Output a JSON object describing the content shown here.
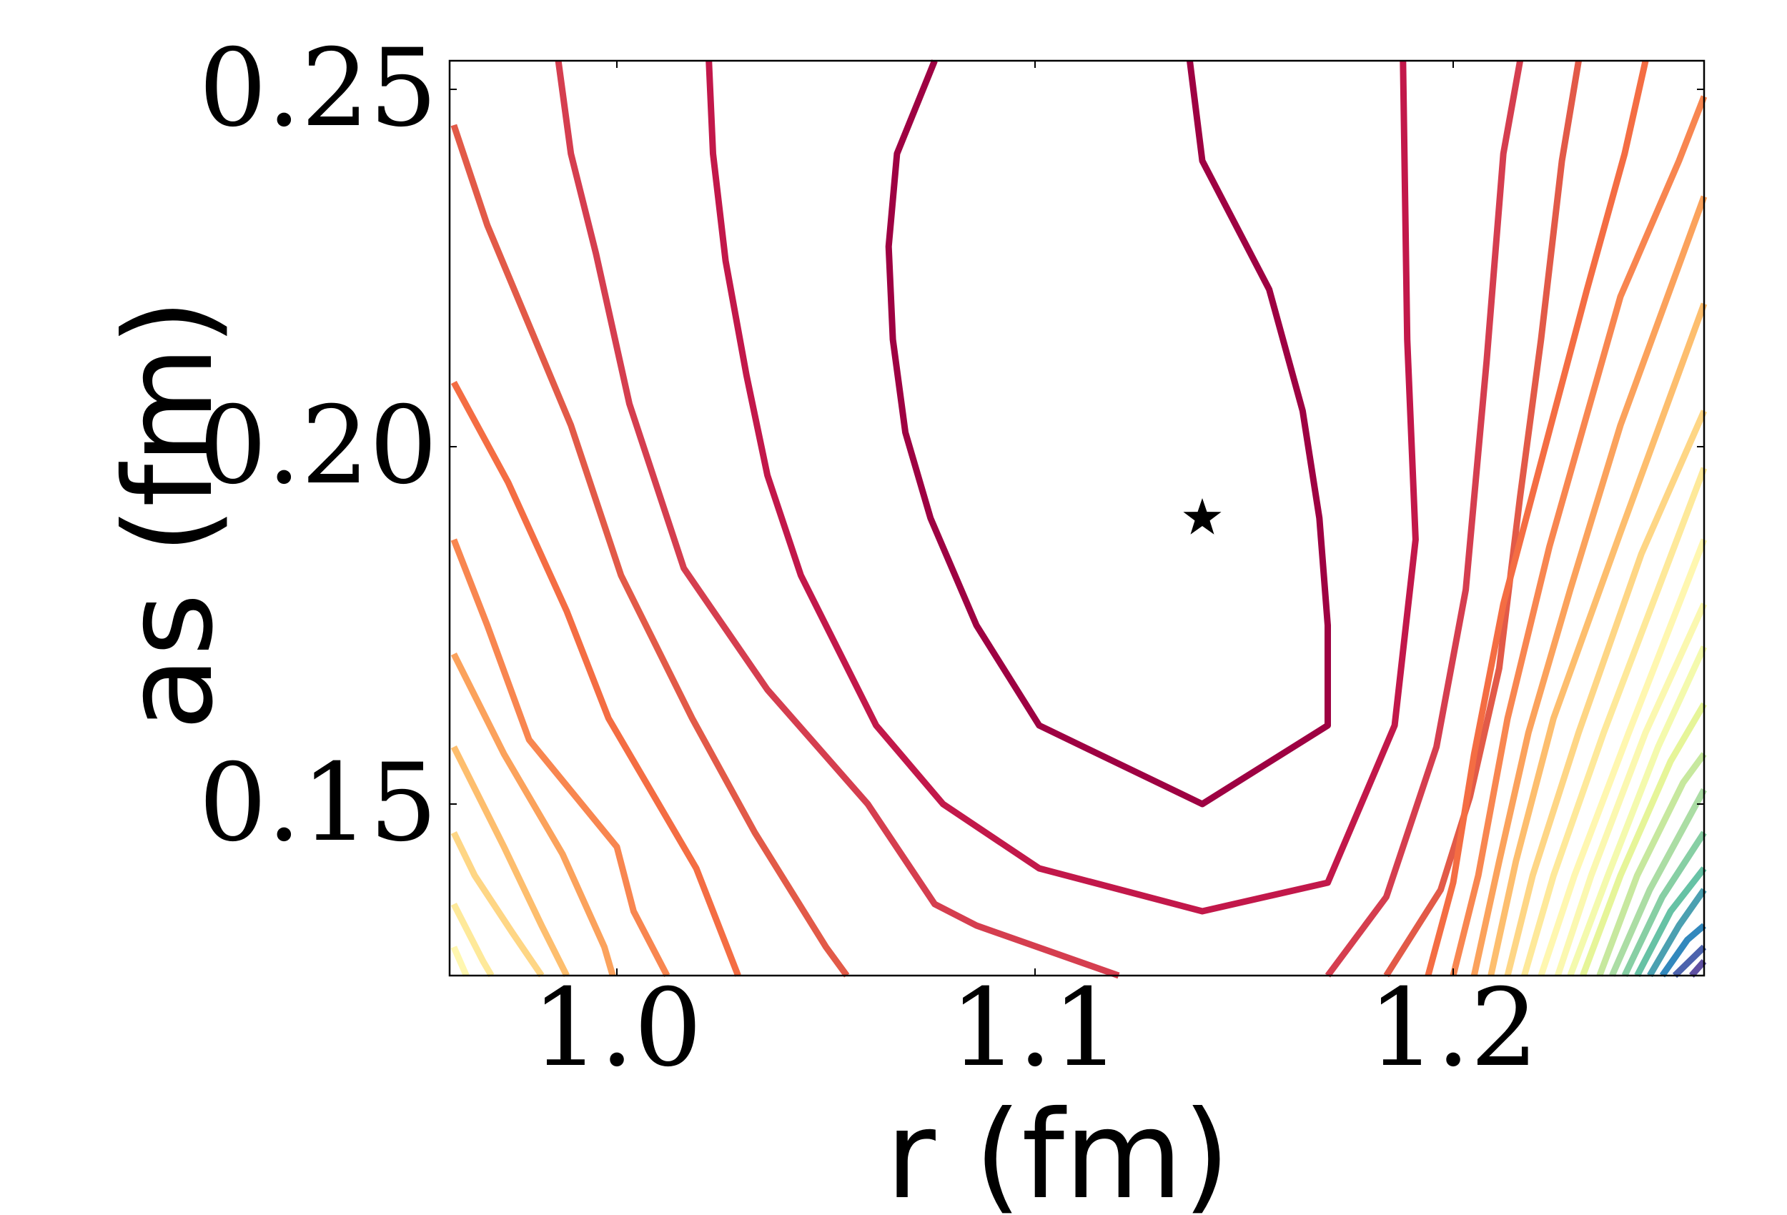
{
  "chart_data": {
    "type": "contour",
    "xlabel": "r (fm)",
    "ylabel": "as (fm)",
    "xlim": [
      0.96,
      1.26
    ],
    "ylim": [
      0.126,
      0.254
    ],
    "xticks": [
      {
        "value": 1.0,
        "label": "1.0"
      },
      {
        "value": 1.1,
        "label": "1.1"
      },
      {
        "value": 1.2,
        "label": "1.2"
      }
    ],
    "yticks": [
      {
        "value": 0.15,
        "label": "0.15"
      },
      {
        "value": 0.2,
        "label": "0.20"
      },
      {
        "value": 0.25,
        "label": "0.25"
      }
    ],
    "minimum": {
      "r": 1.14,
      "as": 0.19,
      "marker": "star"
    },
    "contour_levels": [
      {
        "level": 1,
        "color": "#9e0142",
        "points": [
          [
            1.076,
            0.254
          ],
          [
            1.067,
            0.241
          ],
          [
            1.065,
            0.228
          ],
          [
            1.066,
            0.215
          ],
          [
            1.069,
            0.202
          ],
          [
            1.075,
            0.19
          ],
          [
            1.086,
            0.175
          ],
          [
            1.101,
            0.161
          ],
          [
            1.14,
            0.15
          ],
          [
            1.17,
            0.161
          ],
          [
            1.17,
            0.175
          ],
          [
            1.168,
            0.19
          ],
          [
            1.164,
            0.205
          ],
          [
            1.156,
            0.222
          ],
          [
            1.14,
            0.24
          ],
          [
            1.137,
            0.254
          ]
        ]
      },
      {
        "level": 2,
        "color": "#c2184a",
        "points": [
          [
            1.022,
            0.254
          ],
          [
            1.023,
            0.241
          ],
          [
            1.026,
            0.226
          ],
          [
            1.031,
            0.21
          ],
          [
            1.036,
            0.196
          ],
          [
            1.044,
            0.182
          ],
          [
            1.062,
            0.161
          ],
          [
            1.078,
            0.15
          ],
          [
            1.101,
            0.141
          ],
          [
            1.14,
            0.135
          ],
          [
            1.17,
            0.139
          ],
          [
            1.186,
            0.161
          ],
          [
            1.191,
            0.187
          ],
          [
            1.189,
            0.215
          ],
          [
            1.188,
            0.254
          ]
        ]
      },
      {
        "level": 3,
        "color": "#d53e4f",
        "points": [
          [
            0.986,
            0.254
          ],
          [
            0.989,
            0.241
          ],
          [
            0.995,
            0.227
          ],
          [
            1.003,
            0.206
          ],
          [
            1.016,
            0.183
          ],
          [
            1.036,
            0.166
          ],
          [
            1.06,
            0.15
          ],
          [
            1.076,
            0.136
          ],
          [
            1.086,
            0.133
          ],
          [
            1.12,
            0.126
          ]
        ]
      },
      {
        "level": 4,
        "color": "#d53e4f",
        "points": [
          [
            1.17,
            0.126
          ],
          [
            1.184,
            0.137
          ],
          [
            1.196,
            0.158
          ],
          [
            1.203,
            0.18
          ],
          [
            1.208,
            0.212
          ],
          [
            1.212,
            0.241
          ],
          [
            1.216,
            0.254
          ]
        ]
      },
      {
        "level": 5,
        "color": "#e25a48",
        "points": [
          [
            0.961,
            0.245
          ],
          [
            0.969,
            0.231
          ],
          [
            0.989,
            0.203
          ],
          [
            1.001,
            0.182
          ],
          [
            1.018,
            0.162
          ],
          [
            1.033,
            0.146
          ],
          [
            1.05,
            0.13
          ],
          [
            1.055,
            0.126
          ]
        ]
      },
      {
        "level": 6,
        "color": "#e25a48",
        "points": [
          [
            1.184,
            0.126
          ],
          [
            1.197,
            0.138
          ],
          [
            1.204,
            0.151
          ],
          [
            1.211,
            0.169
          ],
          [
            1.216,
            0.193
          ],
          [
            1.221,
            0.215
          ],
          [
            1.226,
            0.24
          ],
          [
            1.23,
            0.254
          ]
        ]
      },
      {
        "level": 7,
        "color": "#f46d43",
        "points": [
          [
            0.961,
            0.209
          ],
          [
            0.974,
            0.195
          ],
          [
            0.988,
            0.177
          ],
          [
            0.998,
            0.162
          ],
          [
            1.019,
            0.141
          ],
          [
            1.029,
            0.126
          ]
        ]
      },
      {
        "level": 8,
        "color": "#f46d43",
        "points": [
          [
            1.194,
            0.126
          ],
          [
            1.2,
            0.139
          ],
          [
            1.205,
            0.157
          ],
          [
            1.212,
            0.178
          ],
          [
            1.222,
            0.2
          ],
          [
            1.232,
            0.222
          ],
          [
            1.241,
            0.241
          ],
          [
            1.246,
            0.254
          ]
        ]
      },
      {
        "level": 9,
        "color": "#f88650",
        "points": [
          [
            0.961,
            0.187
          ],
          [
            0.969,
            0.175
          ],
          [
            0.979,
            0.159
          ],
          [
            1.0,
            0.144
          ],
          [
            1.004,
            0.135
          ],
          [
            1.012,
            0.126
          ]
        ]
      },
      {
        "level": 10,
        "color": "#f88650",
        "points": [
          [
            1.2,
            0.126
          ],
          [
            1.206,
            0.14
          ],
          [
            1.213,
            0.162
          ],
          [
            1.223,
            0.186
          ],
          [
            1.24,
            0.221
          ],
          [
            1.254,
            0.24
          ],
          [
            1.26,
            0.249
          ]
        ]
      },
      {
        "level": 11,
        "color": "#fba25c",
        "points": [
          [
            0.961,
            0.171
          ],
          [
            0.973,
            0.157
          ],
          [
            0.987,
            0.143
          ],
          [
            0.997,
            0.13
          ],
          [
            0.999,
            0.126
          ]
        ]
      },
      {
        "level": 12,
        "color": "#fba25c",
        "points": [
          [
            1.205,
            0.126
          ],
          [
            1.211,
            0.142
          ],
          [
            1.218,
            0.16
          ],
          [
            1.228,
            0.18
          ],
          [
            1.24,
            0.203
          ],
          [
            1.26,
            0.235
          ]
        ]
      },
      {
        "level": 13,
        "color": "#fdbe6e",
        "points": [
          [
            0.961,
            0.158
          ],
          [
            0.973,
            0.144
          ],
          [
            0.982,
            0.133
          ],
          [
            0.988,
            0.126
          ]
        ]
      },
      {
        "level": 14,
        "color": "#fdbe6e",
        "points": [
          [
            1.209,
            0.126
          ],
          [
            1.215,
            0.142
          ],
          [
            1.224,
            0.162
          ],
          [
            1.24,
            0.188
          ],
          [
            1.26,
            0.22
          ]
        ]
      },
      {
        "level": 15,
        "color": "#fed685",
        "points": [
          [
            0.961,
            0.146
          ],
          [
            0.966,
            0.14
          ],
          [
            0.975,
            0.132
          ],
          [
            0.982,
            0.126
          ]
        ]
      },
      {
        "level": 16,
        "color": "#fed685",
        "points": [
          [
            1.213,
            0.126
          ],
          [
            1.219,
            0.14
          ],
          [
            1.23,
            0.16
          ],
          [
            1.245,
            0.185
          ],
          [
            1.26,
            0.205
          ]
        ]
      },
      {
        "level": 17,
        "color": "#fee99a",
        "points": [
          [
            0.961,
            0.136
          ],
          [
            0.968,
            0.128
          ],
          [
            0.97,
            0.126
          ]
        ]
      },
      {
        "level": 18,
        "color": "#fee99a",
        "points": [
          [
            1.217,
            0.126
          ],
          [
            1.224,
            0.14
          ],
          [
            1.236,
            0.16
          ],
          [
            1.26,
            0.197
          ]
        ]
      },
      {
        "level": 19,
        "color": "#fff7b0",
        "points": [
          [
            0.961,
            0.13
          ],
          [
            0.964,
            0.126
          ]
        ]
      },
      {
        "level": 20,
        "color": "#fff7b0",
        "points": [
          [
            1.221,
            0.126
          ],
          [
            1.229,
            0.14
          ],
          [
            1.242,
            0.16
          ],
          [
            1.26,
            0.187
          ]
        ]
      },
      {
        "level": 21,
        "color": "#fbf8b0",
        "points": [
          [
            1.225,
            0.126
          ],
          [
            1.233,
            0.14
          ],
          [
            1.246,
            0.16
          ],
          [
            1.26,
            0.178
          ]
        ]
      },
      {
        "level": 22,
        "color": "#f4faad",
        "points": [
          [
            1.228,
            0.126
          ],
          [
            1.237,
            0.14
          ],
          [
            1.249,
            0.158
          ],
          [
            1.26,
            0.172
          ]
        ]
      },
      {
        "level": 23,
        "color": "#e6f598",
        "points": [
          [
            1.231,
            0.126
          ],
          [
            1.24,
            0.14
          ],
          [
            1.252,
            0.156
          ],
          [
            1.26,
            0.164
          ]
        ]
      },
      {
        "level": 24,
        "color": "#c7e89e",
        "points": [
          [
            1.235,
            0.126
          ],
          [
            1.244,
            0.14
          ],
          [
            1.255,
            0.153
          ],
          [
            1.26,
            0.157
          ]
        ]
      },
      {
        "level": 25,
        "color": "#abdda4",
        "points": [
          [
            1.238,
            0.126
          ],
          [
            1.247,
            0.138
          ],
          [
            1.26,
            0.152
          ]
        ]
      },
      {
        "level": 26,
        "color": "#87cfa4",
        "points": [
          [
            1.241,
            0.126
          ],
          [
            1.25,
            0.137
          ],
          [
            1.26,
            0.146
          ]
        ]
      },
      {
        "level": 27,
        "color": "#66c2a5",
        "points": [
          [
            1.244,
            0.126
          ],
          [
            1.252,
            0.135
          ],
          [
            1.26,
            0.141
          ]
        ]
      },
      {
        "level": 28,
        "color": "#4ba0b1",
        "points": [
          [
            1.247,
            0.126
          ],
          [
            1.254,
            0.133
          ],
          [
            1.26,
            0.138
          ]
        ]
      },
      {
        "level": 29,
        "color": "#3288bd",
        "points": [
          [
            1.25,
            0.126
          ],
          [
            1.256,
            0.131
          ],
          [
            1.26,
            0.133
          ]
        ]
      },
      {
        "level": 30,
        "color": "#4c63ad",
        "points": [
          [
            1.253,
            0.126
          ],
          [
            1.26,
            0.13
          ]
        ]
      },
      {
        "level": 31,
        "color": "#5e4fa2",
        "points": [
          [
            1.257,
            0.126
          ],
          [
            1.26,
            0.128
          ]
        ]
      }
    ]
  }
}
